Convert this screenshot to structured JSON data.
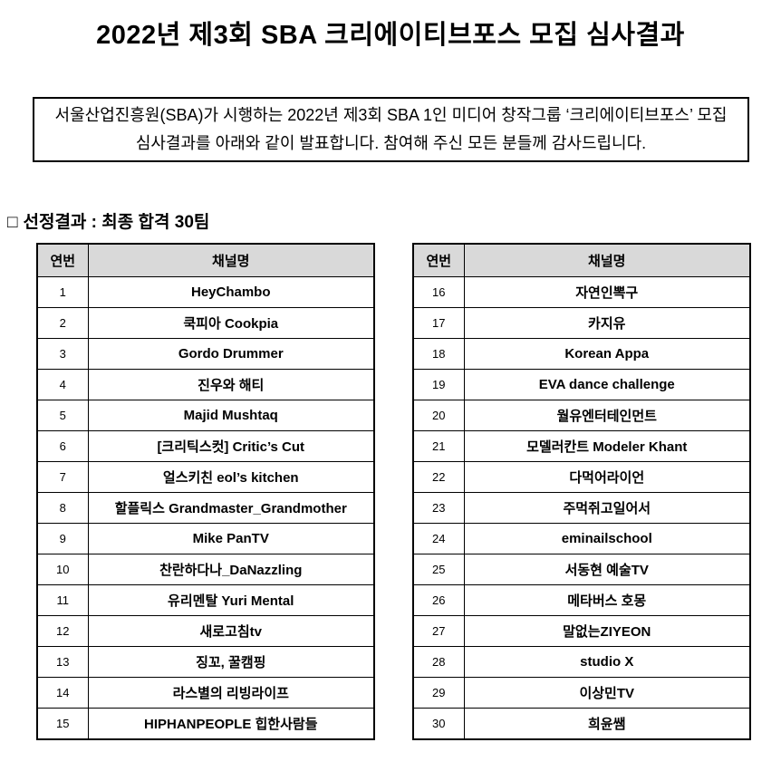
{
  "title": "2022년 제3회 SBA 크리에이티브포스 모집 심사결과",
  "intro_box": {
    "line1": "서울산업진흥원(SBA)가 시행하는 2022년 제3회 SBA 1인 미디어 창작그룹 ‘크리에이티브포스’ 모집",
    "line2": "심사결과를 아래와 같이 발표합니다. 참여해 주신 모든 분들께 감사드립니다."
  },
  "section": {
    "bullet": "□",
    "title": "선정결과 : 최종 합격 30팀"
  },
  "tables": {
    "headers": {
      "no": "연번",
      "channel": "채널명"
    },
    "header_bg": "#d9d9d9",
    "border_color": "#000000",
    "left": [
      {
        "no": "1",
        "channel": "HeyChambo"
      },
      {
        "no": "2",
        "channel": "쿡피아 Cookpia"
      },
      {
        "no": "3",
        "channel": "Gordo Drummer"
      },
      {
        "no": "4",
        "channel": "진우와 해티"
      },
      {
        "no": "5",
        "channel": "Majid Mushtaq"
      },
      {
        "no": "6",
        "channel": "[크리틱스컷] Critic’s Cut"
      },
      {
        "no": "7",
        "channel": "얼스키친 eol’s kitchen"
      },
      {
        "no": "8",
        "channel": "할플릭스 Grandmaster_Grandmother"
      },
      {
        "no": "9",
        "channel": "Mike PanTV"
      },
      {
        "no": "10",
        "channel": "찬란하다나_DaNazzling"
      },
      {
        "no": "11",
        "channel": "유리멘탈 Yuri Mental"
      },
      {
        "no": "12",
        "channel": "새로고침tv"
      },
      {
        "no": "13",
        "channel": "징꼬, 꿀캠핑"
      },
      {
        "no": "14",
        "channel": "라스별의 리빙라이프"
      },
      {
        "no": "15",
        "channel": "HIPHANPEOPLE 힙한사람들"
      }
    ],
    "right": [
      {
        "no": "16",
        "channel": "자연인뽁구"
      },
      {
        "no": "17",
        "channel": "카지유"
      },
      {
        "no": "18",
        "channel": "Korean Appa"
      },
      {
        "no": "19",
        "channel": "EVA dance challenge"
      },
      {
        "no": "20",
        "channel": "월유엔터테인먼트"
      },
      {
        "no": "21",
        "channel": "모델러칸트 Modeler Khant"
      },
      {
        "no": "22",
        "channel": "다먹어라이언"
      },
      {
        "no": "23",
        "channel": "주먹쥐고일어서"
      },
      {
        "no": "24",
        "channel": "eminailschool"
      },
      {
        "no": "25",
        "channel": "서동현 예술TV"
      },
      {
        "no": "26",
        "channel": "메타버스 호몽"
      },
      {
        "no": "27",
        "channel": "말없는ZIYEON"
      },
      {
        "no": "28",
        "channel": "studio X"
      },
      {
        "no": "29",
        "channel": "이상민TV"
      },
      {
        "no": "30",
        "channel": "희윤쌤"
      }
    ]
  }
}
